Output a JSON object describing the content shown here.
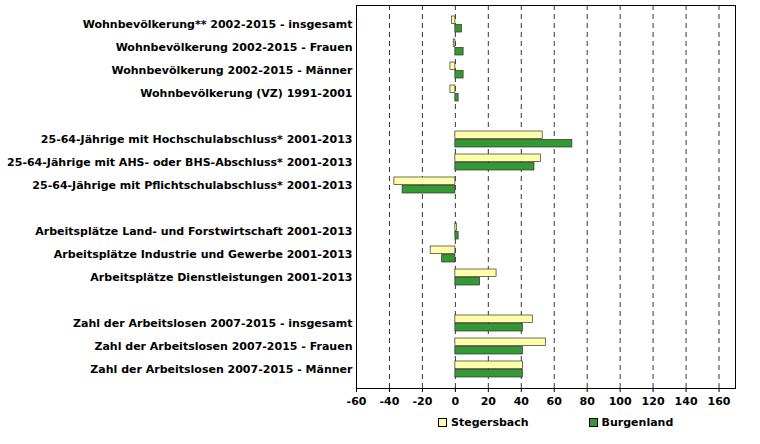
{
  "chart_data": {
    "type": "bar",
    "orientation": "horizontal",
    "categories": [
      "Wohnbevölkerung** 2002-2015 - insgesamt",
      "Wohnbevölkerung 2002-2015 - Frauen",
      "Wohnbevölkerung 2002-2015 - Männer",
      "Wohnbevölkerung (VZ) 1991-2001",
      null,
      "25-64-Jährige mit Hochschulabschluss* 2001-2013",
      "25-64-Jährige mit AHS- oder BHS-Abschluss* 2001-2013",
      "25-64-Jährige mit Pflichtschulabschluss* 2001-2013",
      null,
      "Arbeitsplätze Land- und Forstwirtschaft 2001-2013",
      "Arbeitsplätze Industrie und Gewerbe 2001-2013",
      "Arbeitsplätze Dienstleistungen 2001-2013",
      null,
      "Zahl der Arbeitslosen 2007-2015 - insgesamt",
      "Zahl der Arbeitslosen 2007-2015 - Frauen",
      "Zahl der Arbeitslosen 2007-2015 - Männer"
    ],
    "series": [
      {
        "name": "Stegersbach",
        "color": "#ffffa8",
        "values": [
          -2,
          -1,
          -3,
          -3,
          null,
          53,
          52,
          -37,
          null,
          1,
          -15,
          25,
          null,
          47,
          55,
          41
        ]
      },
      {
        "name": "Burgenland",
        "color": "#339933",
        "values": [
          4,
          5,
          5,
          2,
          null,
          71,
          48,
          -32,
          null,
          2,
          -8,
          15,
          null,
          41,
          41,
          41
        ]
      }
    ],
    "xlim": [
      -60,
      170
    ],
    "xticks": [
      -60,
      -40,
      -20,
      0,
      20,
      40,
      60,
      80,
      100,
      120,
      140,
      160
    ],
    "grid": true,
    "legend": "bottom"
  }
}
